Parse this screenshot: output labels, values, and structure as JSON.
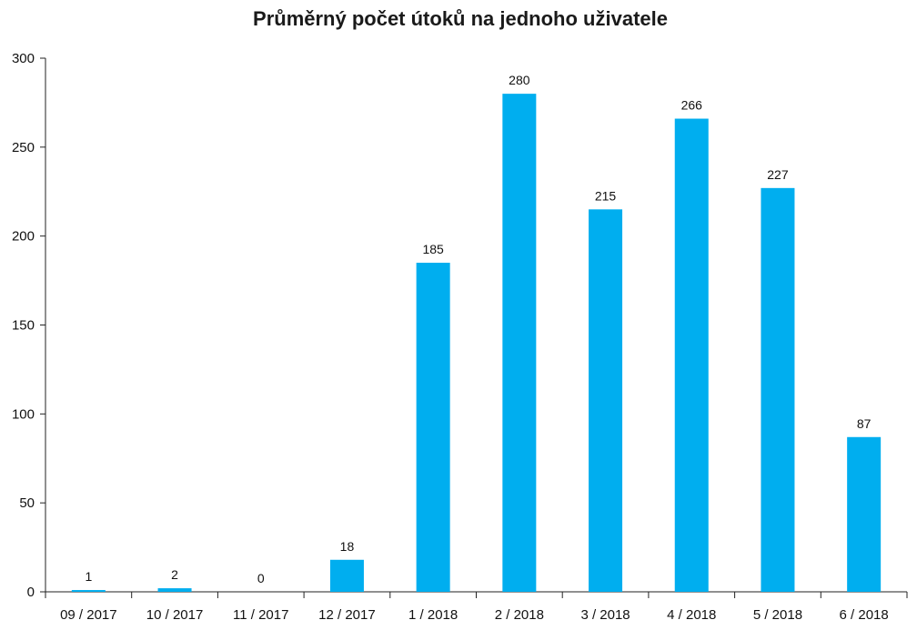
{
  "chart_data": {
    "type": "bar",
    "title": "Průměrný počet útoků na jednoho uživatele",
    "xlabel": "",
    "ylabel": "",
    "categories": [
      "09 / 2017",
      "10 / 2017",
      "11 / 2017",
      "12 / 2017",
      "1 / 2018",
      "2 / 2018",
      "3 / 2018",
      "4 / 2018",
      "5 / 2018",
      "6 / 2018"
    ],
    "values": [
      1,
      2,
      0,
      18,
      185,
      280,
      215,
      266,
      227,
      87
    ],
    "data_labels": [
      "1",
      "2",
      "0",
      "18",
      "185",
      "280",
      "215",
      "266",
      "227",
      "87"
    ],
    "ylim": [
      0,
      300
    ],
    "yticks": [
      0,
      50,
      100,
      150,
      200,
      250,
      300
    ],
    "ytick_labels": [
      "0",
      "50",
      "100",
      "150",
      "200",
      "250",
      "300"
    ],
    "grid": false,
    "legend": "none",
    "colors": {
      "bar": "#00aeef",
      "axis": "#222222",
      "text": "#111111"
    }
  }
}
